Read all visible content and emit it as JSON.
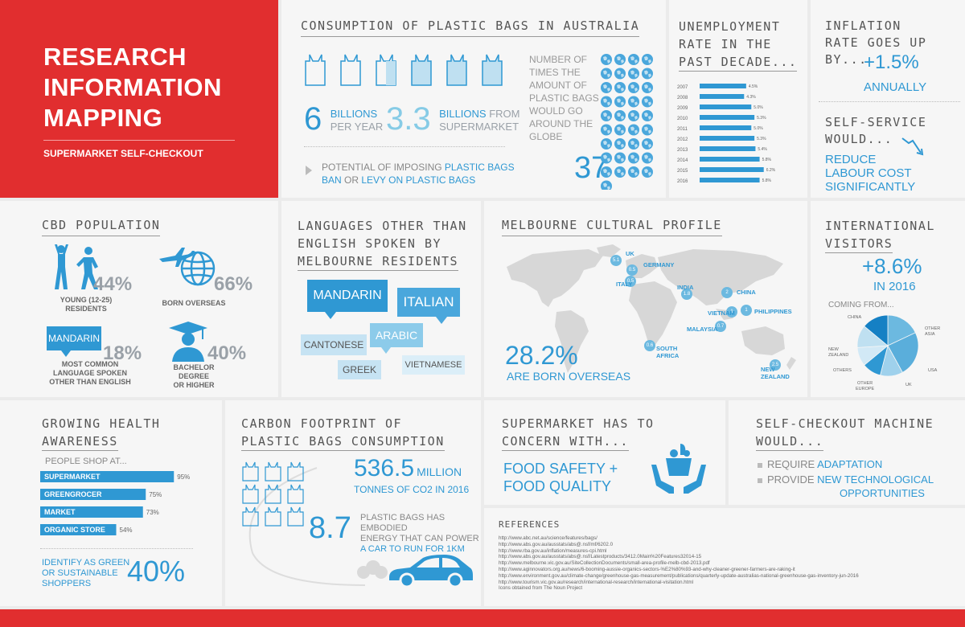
{
  "header": {
    "title_lines": [
      "RESEARCH",
      "INFORMATION",
      "MAPPING"
    ],
    "subtitle": "SUPERMARKET SELF-CHECKOUT"
  },
  "plastic": {
    "heading": "CONSUMPTION OF PLASTIC BAGS IN AUSTRALIA",
    "stat1_num": "6",
    "stat1_label1": "BILLIONS",
    "stat1_label2": "PER YEAR",
    "stat2_num": "3.3",
    "stat2_label1_a": "BILLIONS",
    "stat2_label1_b": " FROM",
    "stat2_label2": "SUPERMARKET",
    "potential_a": "POTENTIAL OF IMPOSING ",
    "potential_b": "PLASTIC BAGS",
    "potential_c": "BAN",
    "potential_d": " OR ",
    "potential_e": "LEVY ON PLASTIC BAGS",
    "globe_text": [
      "NUMBER OF",
      "TIMES THE",
      "AMOUNT OF",
      "PLASTIC BAGS",
      "WOULD GO",
      "AROUND THE",
      "GLOBE"
    ],
    "globe_num": "37"
  },
  "unemployment": {
    "heading_lines": [
      "UNEMPLOYMENT",
      "RATE IN THE",
      "PAST DECADE..."
    ],
    "chart_data": {
      "type": "bar",
      "categories": [
        "2007",
        "2008",
        "2009",
        "2010",
        "2011",
        "2012",
        "2013",
        "2014",
        "2015",
        "2016"
      ],
      "values": [
        4.5,
        4.3,
        5.0,
        5.3,
        5.0,
        5.3,
        5.4,
        5.8,
        6.2,
        5.8
      ],
      "labels": [
        "4.5%",
        "4.3%",
        "5.0%",
        "5.3%",
        "5.0%",
        "5.3%",
        "5.4%",
        "5.8%",
        "6.2%",
        "5.8%"
      ],
      "orientation": "horizontal"
    }
  },
  "inflation": {
    "heading_lines": [
      "INFLATION",
      "RATE GOES UP",
      "BY..."
    ],
    "value": "+1.5%",
    "value_sub": "ANNUALLY",
    "self_heading_lines": [
      "SELF-SERVICE",
      "WOULD..."
    ],
    "self_lines": [
      "REDUCE",
      "LABOUR COST",
      "SIGNIFICANTLY"
    ]
  },
  "cbd": {
    "heading": "CBD POPULATION",
    "young_pct": "44%",
    "young_label": [
      "YOUNG (12-25)",
      "RESIDENTS"
    ],
    "born_pct": "66%",
    "born_label": "BORN OVERSEAS",
    "lang_bubble": "MANDARIN",
    "lang_pct": "18%",
    "lang_label": [
      "MOST COMMON",
      "LANGUAGE SPOKEN",
      "OTHER THAN ENGLISH"
    ],
    "bach_pct": "40%",
    "bach_label": [
      "BACHELOR DEGREE",
      "OR HIGHER"
    ]
  },
  "languages": {
    "heading_lines": [
      "LANGUAGES OTHER THAN",
      "ENGLISH SPOKEN BY",
      "MELBOURNE RESIDENTS"
    ],
    "bubbles": [
      "MANDARIN",
      "ITALIAN",
      "ARABIC",
      "CANTONESE",
      "GREEK",
      "VIETNAMESE"
    ]
  },
  "cultural": {
    "heading": "MELBOURNE CULTURAL PROFILE",
    "pct": "28.2%",
    "pct_label": "ARE BORN OVERSEAS",
    "countries": [
      {
        "name": "UK",
        "val": "5.1"
      },
      {
        "name": "GERMANY",
        "val": "0.5"
      },
      {
        "name": "ITALY",
        "val": "0.5"
      },
      {
        "name": "INDIA",
        "val": "1.8"
      },
      {
        "name": "CHINA",
        "val": "2"
      },
      {
        "name": "VIETNAM",
        "val": "1"
      },
      {
        "name": "PHILIPPINES",
        "val": "1"
      },
      {
        "name": "MALAYSIA",
        "val": "0.7"
      },
      {
        "name": "SOUTH AFRICA",
        "val": "0.6"
      },
      {
        "name": "NEW ZEALAND",
        "val": "2.5"
      }
    ]
  },
  "international": {
    "heading_lines": [
      "INTERNATIONAL",
      "VISITORS"
    ],
    "value": "+8.6%",
    "value_sub": "IN 2016",
    "coming": "COMING FROM...",
    "chart_data": {
      "type": "pie",
      "categories": [
        "CHINA",
        "OTHER ASIA",
        "USA",
        "UK",
        "OTHER EUROPE",
        "OTHERS",
        "NEW ZEALAND"
      ],
      "values": [
        18,
        24,
        12,
        10,
        10,
        12,
        14
      ]
    },
    "labels": {
      "china": "CHINA",
      "other_asia": [
        "OTHER",
        "ASIA"
      ],
      "nz": [
        "NEW",
        "ZEALAND"
      ],
      "others": "OTHERS",
      "other_europe": [
        "OTHER",
        "EUROPE"
      ],
      "uk": "UK",
      "usa": "USA"
    }
  },
  "health": {
    "heading_lines": [
      "GROWING HEALTH",
      "AWARENESS"
    ],
    "people": "PEOPLE SHOP AT...",
    "chart_data": {
      "type": "bar",
      "orientation": "horizontal",
      "categories": [
        "SUPERMARKET",
        "GREENGROCER",
        "MARKET",
        "ORGANIC STORE"
      ],
      "values": [
        95,
        75,
        73,
        54
      ],
      "labels": [
        "95%",
        "75%",
        "73%",
        "54%"
      ]
    },
    "identify": [
      "IDENTIFY AS GREEN",
      "OR SUSTAINABLE",
      "SHOPPERS"
    ],
    "identify_pct": "40%"
  },
  "carbon": {
    "heading_lines": [
      "CARBON FOOTPRINT OF",
      "PLASTIC BAGS CONSUMPTION"
    ],
    "num1": "536.5",
    "num1_unit": "MILLION",
    "num1_sub": "TONNES OF CO2 IN 2016",
    "num2": "8.7",
    "num2_text_a": "PLASTIC BAGS HAS EMBODIED",
    "num2_text_b": "ENERGY THAT CAN POWER",
    "num2_text_c": "A CAR TO RUN FOR 1KM"
  },
  "concern": {
    "heading_lines": [
      "SUPERMARKET HAS TO",
      "CONCERN WITH..."
    ],
    "lines": [
      "FOOD SAFETY +",
      "FOOD QUALITY"
    ]
  },
  "machine": {
    "heading_lines": [
      "SELF-CHECKOUT MACHINE",
      "WOULD..."
    ],
    "item1_a": "REQUIRE ",
    "item1_b": "ADAPTATION",
    "item2_a": "PROVIDE ",
    "item2_b": "NEW TECHNOLOGICAL",
    "item2_c": "OPPORTUNITIES"
  },
  "references": {
    "heading": "REFERENCES",
    "items": [
      "http://www.abc.net.au/science/features/bags/",
      "http://www.abs.gov.au/ausstats/abs@.nsf/mf/6202.0",
      "http://www.rba.gov.au/inflation/measures-cpi.html",
      "http://www.abs.gov.au/ausstats/abs@.nsf/Latestproducts/3412.0Main%20Features32014-15",
      "http://www.melbourne.vic.gov.au/SiteCollectionDocuments/small-area-profile-melb-cbd-2013.pdf",
      "http://www.aginnovators.org.au/news/6-booming-aussie-organics-sectors-%E2%80%93-and-why-cleaner-greener-farmers-are-raking-it",
      "http://www.environment.gov.au/climate-change/greenhouse-gas-measurement/publications/quarterly-update-australias-national-greenhouse-gas-inventory-jun-2016",
      "http://www.tourism.vic.gov.au/research/international-research/international-visitation.html",
      "Icons obtained from The Noun Project"
    ]
  },
  "colors": {
    "red": "#e12e2f",
    "blue": "#2f98d3",
    "light_blue": "#6cb9e0",
    "grey": "#9aa1a8"
  }
}
